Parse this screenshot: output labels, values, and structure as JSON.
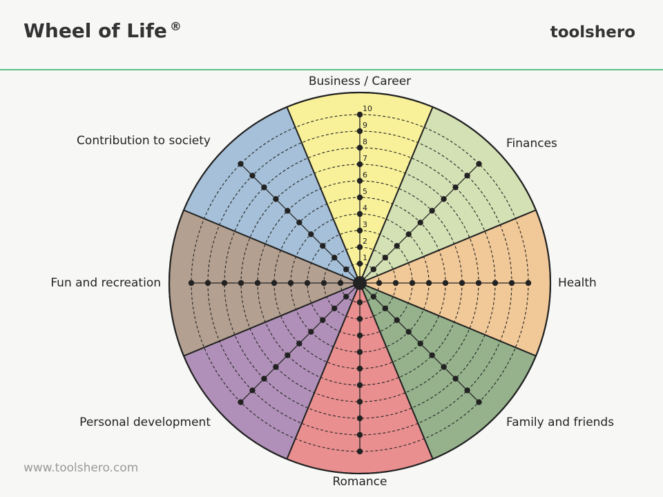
{
  "header": {
    "title": "Wheel of Life",
    "registered": "®",
    "brand": "toolshero"
  },
  "footer": {
    "url": "www.toolshero.com"
  },
  "wheel": {
    "scale": [
      "1",
      "2",
      "3",
      "4",
      "5",
      "6",
      "7",
      "8",
      "9",
      "10"
    ],
    "segments": [
      {
        "label": "Business / Career",
        "color": "#f8f19a"
      },
      {
        "label": "Finances",
        "color": "#d4e1b4"
      },
      {
        "label": "Health",
        "color": "#f1c998"
      },
      {
        "label": "Family and friends",
        "color": "#95b28c"
      },
      {
        "label": "Romance",
        "color": "#e98f8f"
      },
      {
        "label": "Personal development",
        "color": "#b090b8"
      },
      {
        "label": "Fun and recreation",
        "color": "#b4a090"
      },
      {
        "label": "Contribution to society",
        "color": "#a5c0d8"
      }
    ],
    "outline_color": "#222222",
    "accent_color": "#5cbf83"
  }
}
